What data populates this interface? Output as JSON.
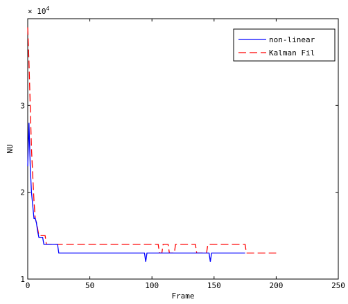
{
  "chart_data": {
    "type": "line",
    "xlabel": "Frame",
    "ylabel": "NU",
    "exponent_label": "× 10",
    "exponent_power": "4",
    "xlim": [
      0,
      250
    ],
    "ylim": [
      10000,
      40000
    ],
    "x_ticks": [
      0,
      50,
      100,
      150,
      200,
      250
    ],
    "y_ticks": [
      10000,
      20000,
      30000
    ],
    "y_tick_labels": [
      "1",
      "2",
      "3"
    ],
    "grid": false,
    "legend_position": "top-right",
    "series": [
      {
        "name": "non-linear",
        "color": "#0000ff",
        "dash": "solid",
        "points": [
          [
            0,
            23000
          ],
          [
            1,
            28000
          ],
          [
            2,
            23000
          ],
          [
            3,
            20000
          ],
          [
            4,
            18500
          ],
          [
            5,
            17000
          ],
          [
            6,
            17000
          ],
          [
            7,
            16500
          ],
          [
            8,
            15500
          ],
          [
            9,
            14800
          ],
          [
            12,
            14800
          ],
          [
            13,
            14000
          ],
          [
            24,
            14000
          ],
          [
            25,
            13000
          ],
          [
            94,
            13000
          ],
          [
            95,
            12000
          ],
          [
            96,
            13000
          ],
          [
            146,
            13000
          ],
          [
            147,
            12000
          ],
          [
            148,
            13000
          ],
          [
            175,
            13000
          ]
        ]
      },
      {
        "name": "Kalman Fil",
        "color": "#ff0000",
        "dash": "dashed",
        "points": [
          [
            0,
            39000
          ],
          [
            1,
            35000
          ],
          [
            2,
            30000
          ],
          [
            3,
            25000
          ],
          [
            4,
            22000
          ],
          [
            5,
            19000
          ],
          [
            6,
            17000
          ],
          [
            7,
            16500
          ],
          [
            8,
            15800
          ],
          [
            9,
            15000
          ],
          [
            14,
            15000
          ],
          [
            15,
            14000
          ],
          [
            105,
            14000
          ],
          [
            106,
            13000
          ],
          [
            108,
            13000
          ],
          [
            109,
            14000
          ],
          [
            113,
            14000
          ],
          [
            114,
            13000
          ],
          [
            118,
            13000
          ],
          [
            119,
            14000
          ],
          [
            135,
            14000
          ],
          [
            136,
            13000
          ],
          [
            144,
            13000
          ],
          [
            145,
            14000
          ],
          [
            175,
            14000
          ],
          [
            176,
            13000
          ],
          [
            200,
            13000
          ]
        ]
      }
    ]
  }
}
